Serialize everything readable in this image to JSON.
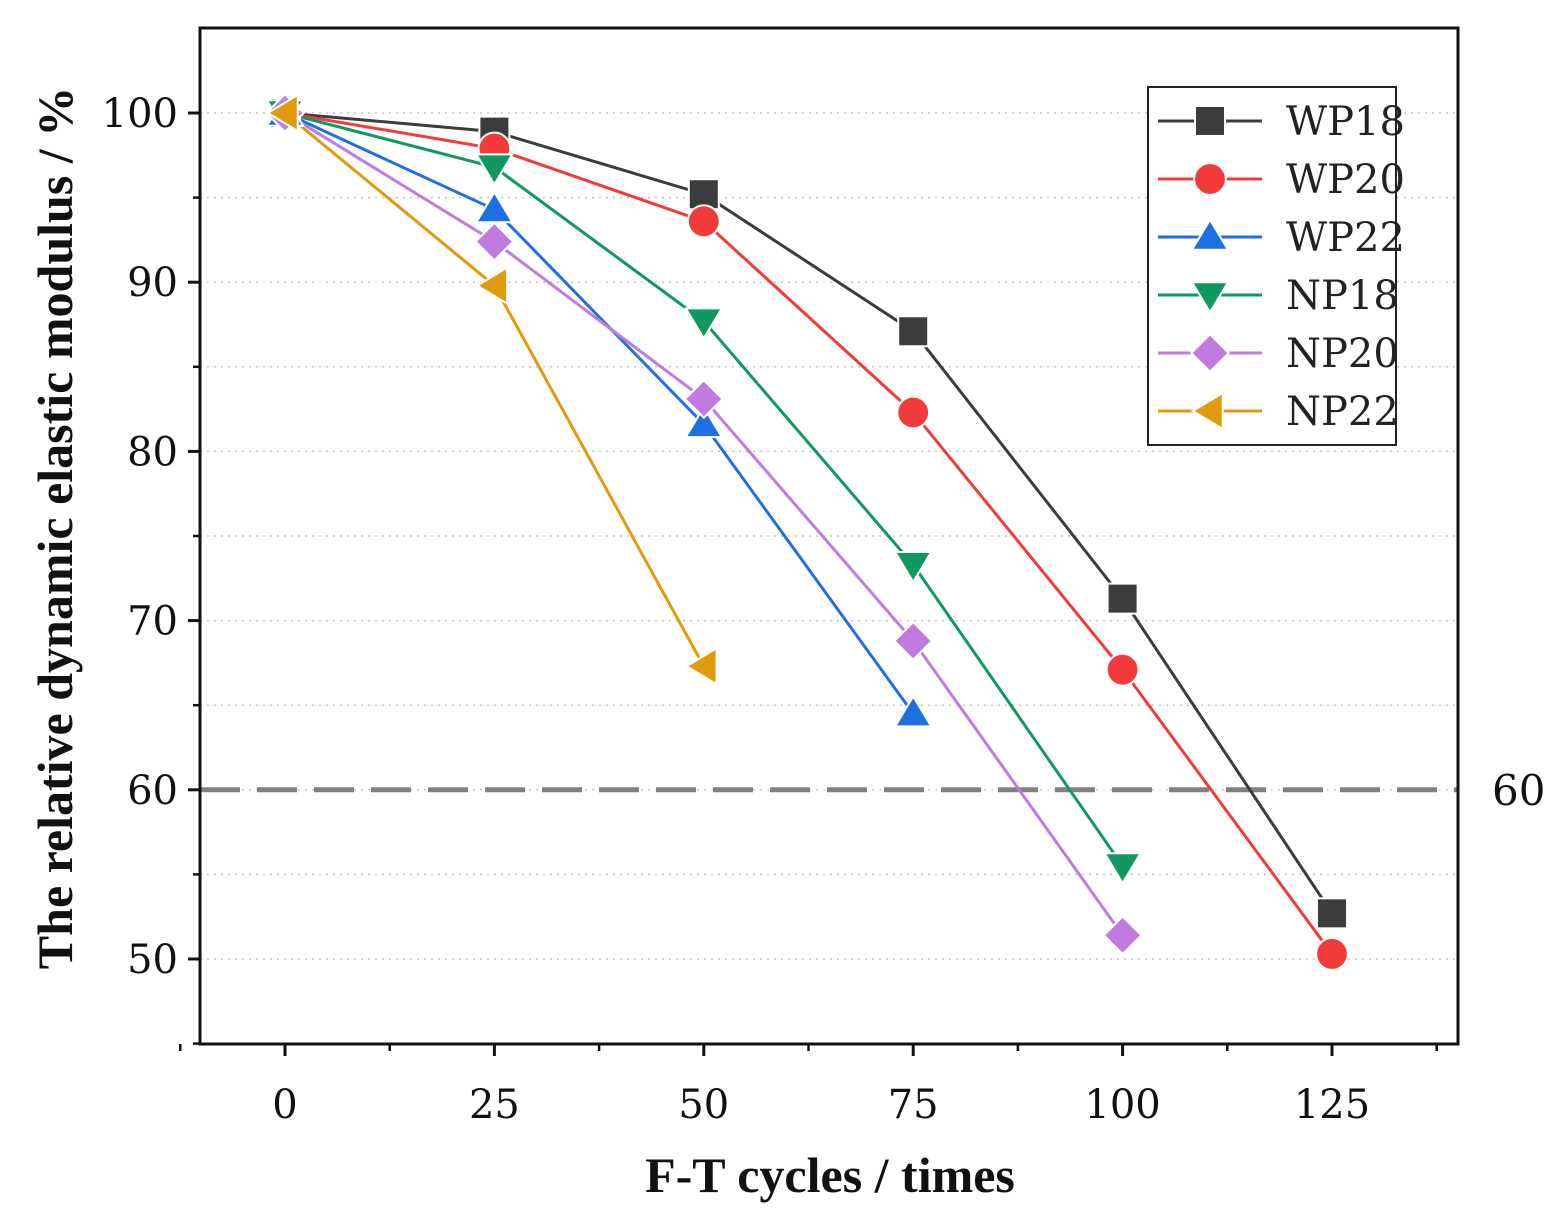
{
  "chart_data": {
    "type": "line",
    "title": "",
    "xlabel": "F-T cycles / times",
    "ylabel": "The relative dynamic elastic modulus / %",
    "x": [
      0,
      25,
      50,
      75,
      100,
      125
    ],
    "xticks": [
      0,
      25,
      50,
      75,
      100,
      125
    ],
    "yticks": [
      50,
      60,
      70,
      80,
      90,
      100
    ],
    "xlim": [
      -10,
      140
    ],
    "ylim": [
      45,
      105
    ],
    "grid": "horizontal dotted",
    "legend_position": "top-right",
    "reference_line": {
      "value": 60,
      "label": "60",
      "style": "dashed"
    },
    "series": [
      {
        "name": "WP18",
        "marker": "square",
        "color": "#3c3c3c",
        "x": [
          0,
          25,
          50,
          75,
          100,
          125
        ],
        "values": [
          100,
          98.9,
          95.2,
          87.1,
          71.3,
          52.7
        ]
      },
      {
        "name": "WP20",
        "marker": "circle",
        "color": "#f23a3a",
        "x": [
          0,
          25,
          50,
          75,
          100,
          125
        ],
        "values": [
          100,
          97.9,
          93.6,
          82.3,
          67.1,
          50.3
        ]
      },
      {
        "name": "WP22",
        "marker": "triangle-up",
        "color": "#1e6fe0",
        "x": [
          0,
          25,
          50,
          75
        ],
        "values": [
          100,
          94.3,
          81.6,
          64.5
        ]
      },
      {
        "name": "NP18",
        "marker": "triangle-down",
        "color": "#0f9960",
        "x": [
          0,
          25,
          50,
          75,
          100
        ],
        "values": [
          100,
          96.8,
          87.7,
          73.3,
          55.5
        ]
      },
      {
        "name": "NP20",
        "marker": "diamond",
        "color": "#c07ae0",
        "x": [
          0,
          25,
          50,
          75,
          100
        ],
        "values": [
          100,
          92.4,
          83.1,
          68.8,
          51.4
        ]
      },
      {
        "name": "NP22",
        "marker": "triangle-left",
        "color": "#e09a0c",
        "x": [
          0,
          25,
          50
        ],
        "values": [
          100,
          89.8,
          67.3
        ]
      }
    ]
  }
}
